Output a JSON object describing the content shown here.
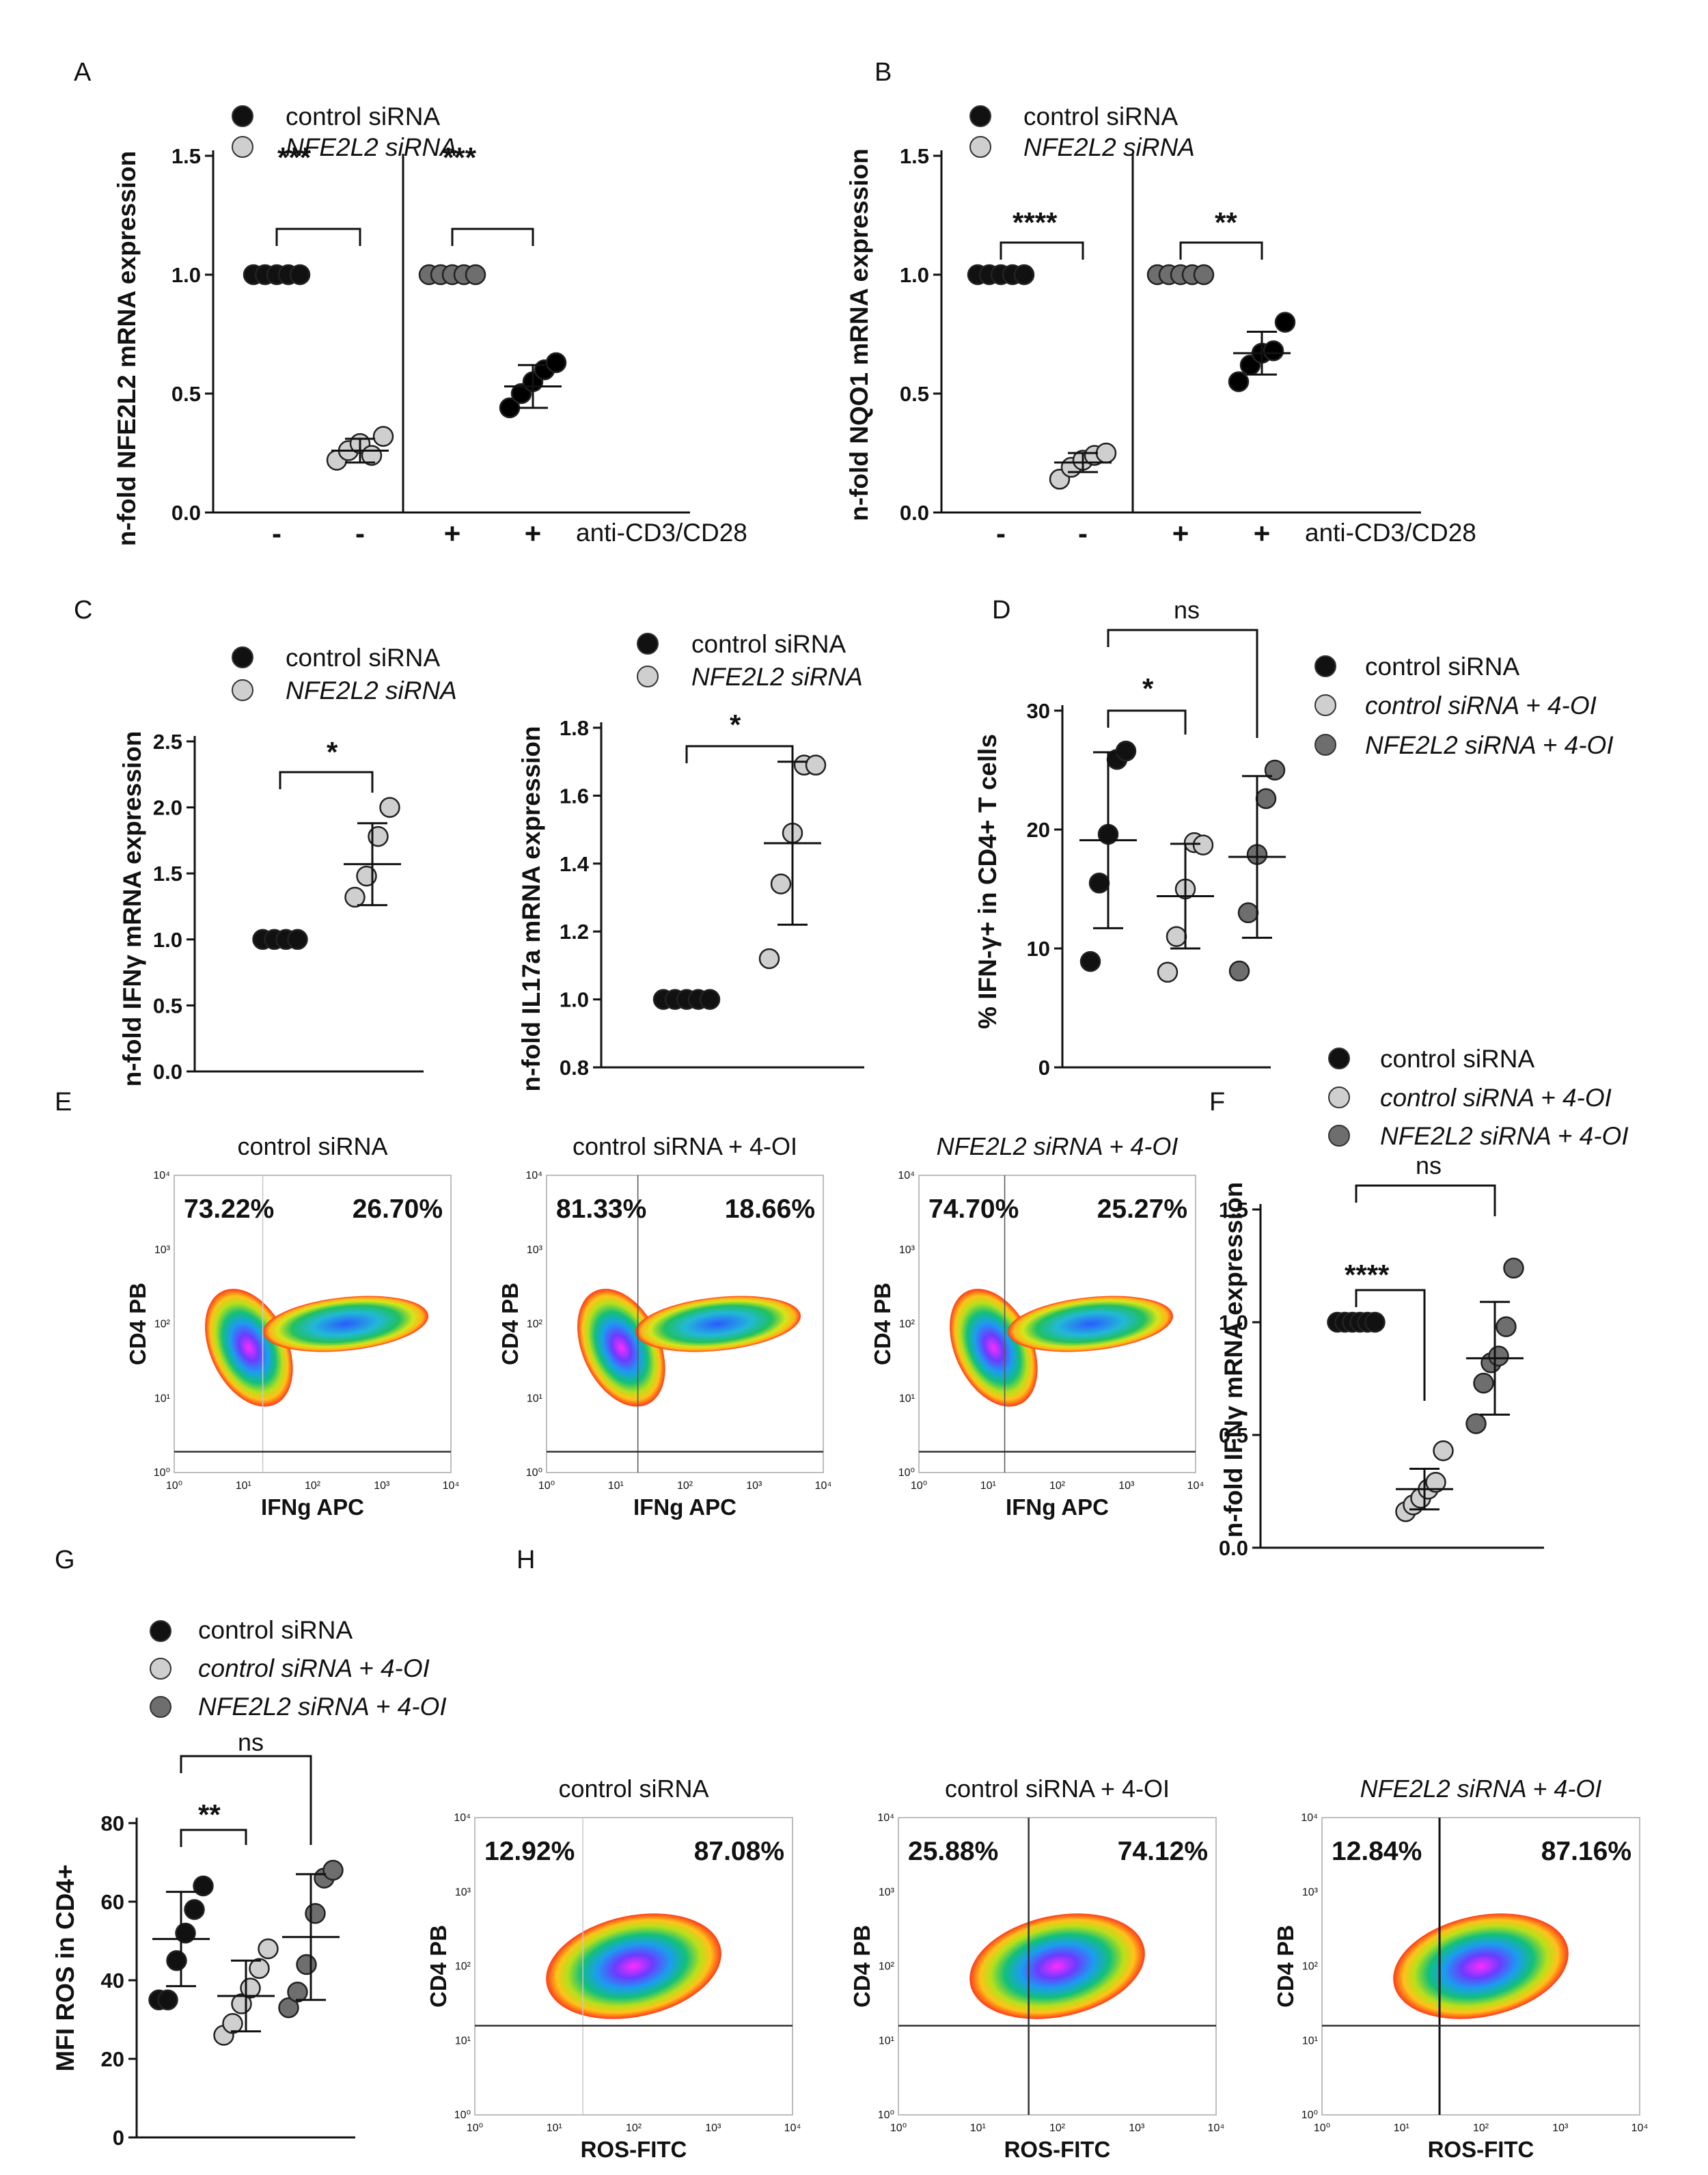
{
  "panels": {
    "A": {
      "letter": "A",
      "legend": [
        {
          "label": "control siRNA",
          "color": "#111111"
        },
        {
          "label": "NFE2L2 siRNA",
          "color": "#cfcfcf"
        }
      ],
      "ylabel": "n-fold NFE2L2 mRNA expression",
      "xcondition_label": "anti-CD3/CD28",
      "signs": [
        "-",
        "-",
        "+",
        "+"
      ],
      "significance": [
        "***",
        "***"
      ]
    },
    "B": {
      "letter": "B",
      "legend": [
        {
          "label": "control siRNA",
          "color": "#111111"
        },
        {
          "label": "NFE2L2 siRNA",
          "color": "#cfcfcf"
        }
      ],
      "ylabel": "n-fold NQO1 mRNA expression",
      "xcondition_label": "anti-CD3/CD28",
      "signs": [
        "-",
        "-",
        "+",
        "+"
      ],
      "significance": [
        "****",
        "**"
      ]
    },
    "C": {
      "letter": "C",
      "left": {
        "legend": [
          {
            "label": "control siRNA",
            "color": "#111111"
          },
          {
            "label": "NFE2L2 siRNA",
            "color": "#cfcfcf"
          }
        ],
        "ylabel": "n-fold IFNγ mRNA expression",
        "significance": "*"
      },
      "right": {
        "legend": [
          {
            "label": "control siRNA",
            "color": "#111111"
          },
          {
            "label": "NFE2L2 siRNA",
            "color": "#cfcfcf"
          }
        ],
        "ylabel": "n-fold IL17a mRNA expression",
        "significance": "*"
      }
    },
    "D": {
      "letter": "D",
      "legend": [
        {
          "label": "control siRNA",
          "color": "#111111"
        },
        {
          "label": "control siRNA + 4-OI",
          "color": "#cfcfcf"
        },
        {
          "label": "NFE2L2 siRNA + 4-OI",
          "color": "#6e6e6e"
        }
      ],
      "ylabel": "% IFN-γ+ in CD4+ T cells",
      "significance": [
        "*",
        "ns"
      ]
    },
    "E": {
      "letter": "E",
      "xlabel": "IFNg APC",
      "ylabel": "CD4 PB",
      "ticks": [
        "10⁰",
        "10¹",
        "10²",
        "10³",
        "10⁴"
      ],
      "plots": [
        {
          "title": "control siRNA",
          "left_pct": "73.22%",
          "right_pct": "26.70%"
        },
        {
          "title": "control siRNA + 4-OI",
          "left_pct": "81.33%",
          "right_pct": "18.66%"
        },
        {
          "title": "NFE2L2 siRNA + 4-OI",
          "left_pct": "74.70%",
          "right_pct": "25.27%"
        }
      ]
    },
    "F": {
      "letter": "F",
      "legend": [
        {
          "label": "control siRNA",
          "color": "#111111"
        },
        {
          "label": "control siRNA + 4-OI",
          "color": "#cfcfcf"
        },
        {
          "label": "NFE2L2 siRNA + 4-OI",
          "color": "#6e6e6e"
        }
      ],
      "ylabel": "n-fold IFNγ mRNA expression",
      "significance": [
        "****",
        "ns"
      ]
    },
    "G": {
      "letter": "G",
      "legend": [
        {
          "label": "control siRNA",
          "color": "#111111"
        },
        {
          "label": "control siRNA + 4-OI",
          "color": "#cfcfcf"
        },
        {
          "label": "NFE2L2 siRNA + 4-OI",
          "color": "#6e6e6e"
        }
      ],
      "ylabel": "MFI ROS in CD4+",
      "significance": [
        "**",
        "ns"
      ]
    },
    "H": {
      "letter": "H",
      "xlabel": "ROS-FITC",
      "ylabel": "CD4 PB",
      "ticks": [
        "10⁰",
        "10¹",
        "10²",
        "10³",
        "10⁴"
      ],
      "plots": [
        {
          "title": "control siRNA",
          "left_pct": "12.92%",
          "right_pct": "87.08%"
        },
        {
          "title": "control siRNA + 4-OI",
          "left_pct": "25.88%",
          "right_pct": "74.12%"
        },
        {
          "title": "NFE2L2 siRNA + 4-OI",
          "left_pct": "12.84%",
          "right_pct": "87.16%"
        }
      ]
    }
  },
  "chart_data": [
    {
      "id": "A",
      "type": "scatter",
      "ylim": [
        0,
        1.5
      ],
      "yticks": [
        "0.0",
        "0.5",
        "1.0",
        "1.5"
      ],
      "series": [
        {
          "name": "control siRNA, -",
          "values": [
            1.0,
            1.0,
            1.0,
            1.0,
            1.0
          ],
          "mean": 1.0,
          "sd": 0
        },
        {
          "name": "NFE2L2 siRNA, -",
          "values": [
            0.22,
            0.26,
            0.29,
            0.24,
            0.32
          ],
          "mean": 0.26,
          "sd": 0.05
        },
        {
          "name": "control siRNA, +",
          "values": [
            1.0,
            1.0,
            1.0,
            1.0,
            1.0
          ],
          "mean": 1.0,
          "sd": 0
        },
        {
          "name": "NFE2L2 siRNA, +",
          "values": [
            0.44,
            0.5,
            0.55,
            0.6,
            0.63
          ],
          "mean": 0.53,
          "sd": 0.09
        }
      ]
    },
    {
      "id": "B",
      "type": "scatter",
      "ylim": [
        0,
        1.5
      ],
      "yticks": [
        "0.0",
        "0.5",
        "1.0",
        "1.5"
      ],
      "series": [
        {
          "name": "control siRNA, -",
          "values": [
            1.0,
            1.0,
            1.0,
            1.0,
            1.0
          ],
          "mean": 1.0,
          "sd": 0
        },
        {
          "name": "NFE2L2 siRNA, -",
          "values": [
            0.14,
            0.19,
            0.22,
            0.24,
            0.25
          ],
          "mean": 0.21,
          "sd": 0.04
        },
        {
          "name": "control siRNA, +",
          "values": [
            1.0,
            1.0,
            1.0,
            1.0,
            1.0
          ],
          "mean": 1.0,
          "sd": 0
        },
        {
          "name": "NFE2L2 siRNA, +",
          "values": [
            0.55,
            0.62,
            0.67,
            0.68,
            0.8
          ],
          "mean": 0.67,
          "sd": 0.09
        }
      ]
    },
    {
      "id": "C-IFNg",
      "type": "scatter",
      "ylim": [
        0,
        2.5
      ],
      "yticks": [
        "0.0",
        "0.5",
        "1.0",
        "1.5",
        "2.0",
        "2.5"
      ],
      "series": [
        {
          "name": "control siRNA",
          "values": [
            1.0,
            1.0,
            1.0,
            1.0
          ],
          "mean": 1.0,
          "sd": 0
        },
        {
          "name": "NFE2L2 siRNA",
          "values": [
            1.32,
            1.48,
            1.78,
            2.0
          ],
          "mean": 1.57,
          "sd": 0.31
        }
      ]
    },
    {
      "id": "C-IL17a",
      "type": "scatter",
      "ylim": [
        0.8,
        1.8
      ],
      "yticks": [
        "0.8",
        "1.0",
        "1.2",
        "1.4",
        "1.6",
        "1.8"
      ],
      "series": [
        {
          "name": "control siRNA",
          "values": [
            1.0,
            1.0,
            1.0,
            1.0,
            1.0
          ],
          "mean": 1.0,
          "sd": 0
        },
        {
          "name": "NFE2L2 siRNA",
          "values": [
            1.12,
            1.34,
            1.49,
            1.69,
            1.69
          ],
          "mean": 1.46,
          "sd": 0.24
        }
      ]
    },
    {
      "id": "D",
      "type": "scatter",
      "ylim": [
        0,
        30
      ],
      "yticks": [
        "0",
        "10",
        "20",
        "30"
      ],
      "series": [
        {
          "name": "control siRNA",
          "values": [
            8.9,
            15.5,
            19.6,
            25.9,
            26.6
          ],
          "mean": 19.1,
          "sd": 7.4
        },
        {
          "name": "control siRNA + 4-OI",
          "values": [
            8.0,
            11.0,
            15.0,
            18.9,
            18.7
          ],
          "mean": 14.4,
          "sd": 4.4
        },
        {
          "name": "NFE2L2 siRNA + 4-OI",
          "values": [
            8.1,
            13.0,
            17.9,
            22.6,
            25.0
          ],
          "mean": 17.7,
          "sd": 6.8
        }
      ]
    },
    {
      "id": "F",
      "type": "scatter",
      "ylim": [
        0,
        1.5
      ],
      "yticks": [
        "0.0",
        "0.5",
        "1.0",
        "1.5"
      ],
      "series": [
        {
          "name": "control siRNA",
          "values": [
            1.0,
            1.0,
            1.0,
            1.0,
            1.0,
            1.0
          ],
          "mean": 1.0,
          "sd": 0
        },
        {
          "name": "control siRNA + 4-OI",
          "values": [
            0.16,
            0.19,
            0.22,
            0.26,
            0.29,
            0.43
          ],
          "mean": 0.26,
          "sd": 0.09
        },
        {
          "name": "NFE2L2 siRNA + 4-OI",
          "values": [
            0.55,
            0.73,
            0.82,
            0.85,
            0.98,
            1.24
          ],
          "mean": 0.84,
          "sd": 0.25
        }
      ]
    },
    {
      "id": "G",
      "type": "scatter",
      "ylim": [
        0,
        80
      ],
      "yticks": [
        "0",
        "20",
        "40",
        "60",
        "80"
      ],
      "series": [
        {
          "name": "control siRNA",
          "values": [
            35,
            35,
            45,
            52,
            58,
            64
          ],
          "mean": 50.5,
          "sd": 12
        },
        {
          "name": "control siRNA + 4-OI",
          "values": [
            26,
            29,
            34,
            38,
            43,
            48
          ],
          "mean": 36,
          "sd": 9
        },
        {
          "name": "NFE2L2 siRNA + 4-OI",
          "values": [
            33,
            37,
            44,
            57,
            66,
            68
          ],
          "mean": 51,
          "sd": 16
        }
      ]
    }
  ]
}
